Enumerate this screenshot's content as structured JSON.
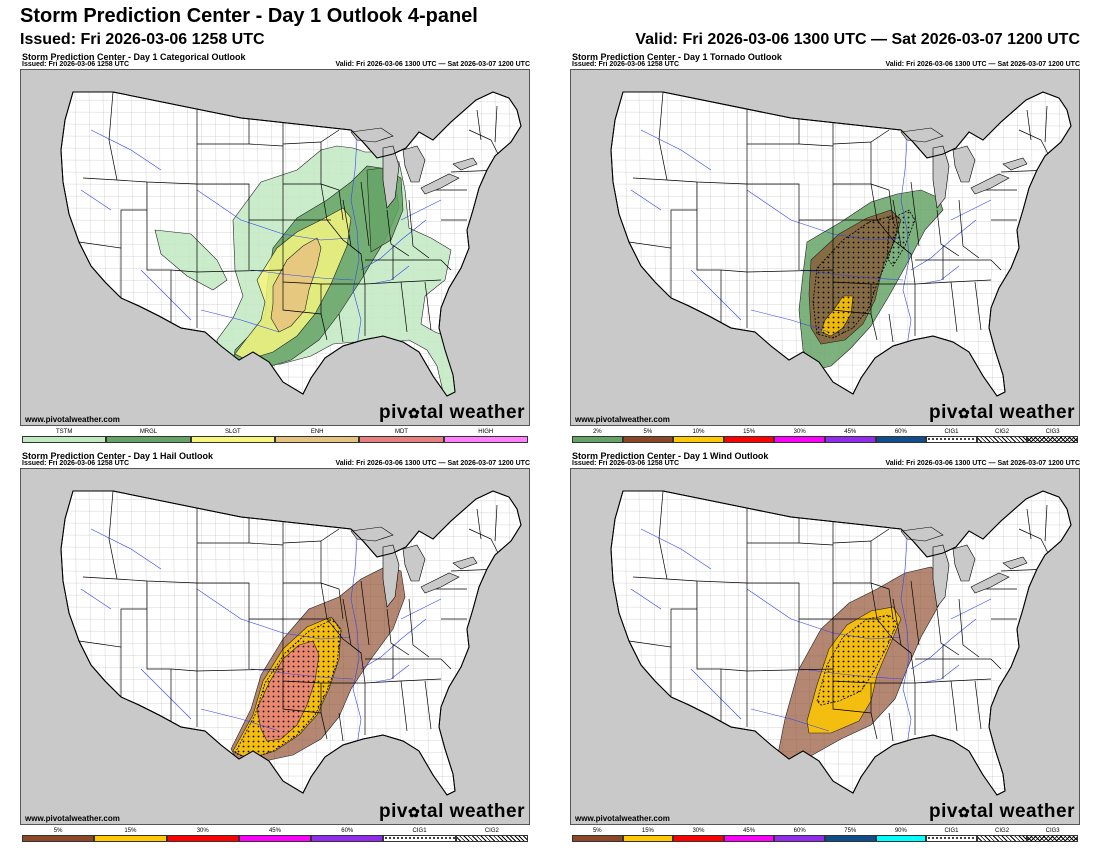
{
  "header": {
    "title": "Storm Prediction Center - Day 1 Outlook 4-panel",
    "issued": "Issued: Fri 2026-03-06 1258 UTC",
    "valid": "Valid: Fri 2026-03-06 1300 UTC — Sat 2026-03-07 1200 UTC"
  },
  "panels": [
    {
      "title": "Storm Prediction Center - Day 1 Categorical Outlook",
      "issued": "Issued: Fri 2026-03-06 1258 UTC",
      "valid": "Valid: Fri 2026-03-06 1300 UTC — Sat 2026-03-07 1200 UTC",
      "site": "www.pivotalweather.com",
      "brand_left": "piv",
      "brand_right": "tal weather",
      "legend": [
        {
          "label": "TSTM",
          "color": "#c1e9c1"
        },
        {
          "label": "MRGL",
          "color": "#66a366"
        },
        {
          "label": "SLGT",
          "color": "#f6f67f"
        },
        {
          "label": "ENH",
          "color": "#e6c27f"
        },
        {
          "label": "MDT",
          "color": "#e67f7f"
        },
        {
          "label": "HIGH",
          "color": "#ff7fff"
        }
      ]
    },
    {
      "title": "Storm Prediction Center - Day 1 Tornado Outlook",
      "issued": "Issued: Fri 2026-03-06 1258 UTC",
      "valid": "Valid: Fri 2026-03-06 1300 UTC — Sat 2026-03-07 1200 UTC",
      "site": "www.pivotalweather.com",
      "brand_left": "piv",
      "brand_right": "tal weather",
      "legend": [
        {
          "label": "2%",
          "color": "#66a366"
        },
        {
          "label": "5%",
          "color": "#8b4726"
        },
        {
          "label": "10%",
          "color": "#ffc800"
        },
        {
          "label": "15%",
          "color": "#ff0000"
        },
        {
          "label": "30%",
          "color": "#ff00ff"
        },
        {
          "label": "45%",
          "color": "#912cee"
        },
        {
          "label": "60%",
          "color": "#104e8b"
        },
        {
          "label": "CIG1",
          "color": "dots"
        },
        {
          "label": "CIG2",
          "color": "diag"
        },
        {
          "label": "CIG3",
          "color": "cross"
        }
      ]
    },
    {
      "title": "Storm Prediction Center - Day 1 Hail Outlook",
      "issued": "Issued: Fri 2026-03-06 1258 UTC",
      "valid": "Valid: Fri 2026-03-06 1300 UTC — Sat 2026-03-07 1200 UTC",
      "site": "www.pivotalweather.com",
      "brand_left": "piv",
      "brand_right": "tal weather",
      "legend": [
        {
          "label": "5%",
          "color": "#8b4726"
        },
        {
          "label": "15%",
          "color": "#ffc800"
        },
        {
          "label": "30%",
          "color": "#ff0000"
        },
        {
          "label": "45%",
          "color": "#ff00ff"
        },
        {
          "label": "60%",
          "color": "#912cee"
        },
        {
          "label": "CIG1",
          "color": "dots"
        },
        {
          "label": "CIG2",
          "color": "diag"
        }
      ]
    },
    {
      "title": "Storm Prediction Center - Day 1 Wind Outlook",
      "issued": "Issued: Fri 2026-03-06 1258 UTC",
      "valid": "Valid: Fri 2026-03-06 1300 UTC — Sat 2026-03-07 1200 UTC",
      "site": "www.pivotalweather.com",
      "brand_left": "piv",
      "brand_right": "tal weather",
      "legend": [
        {
          "label": "5%",
          "color": "#8b4726"
        },
        {
          "label": "15%",
          "color": "#ffc800"
        },
        {
          "label": "30%",
          "color": "#ff0000"
        },
        {
          "label": "45%",
          "color": "#ff00ff"
        },
        {
          "label": "60%",
          "color": "#912cee"
        },
        {
          "label": "75%",
          "color": "#104e8b"
        },
        {
          "label": "90%",
          "color": "#00ffff"
        },
        {
          "label": "CIG1",
          "color": "dots"
        },
        {
          "label": "CIG2",
          "color": "diag"
        },
        {
          "label": "CIG3",
          "color": "cross"
        }
      ]
    }
  ],
  "colors": {
    "land": "#ffffff",
    "outside": "#c9c9c9",
    "water": "#c9c9c9",
    "state_border": "#000000",
    "river": "#3344ee"
  }
}
